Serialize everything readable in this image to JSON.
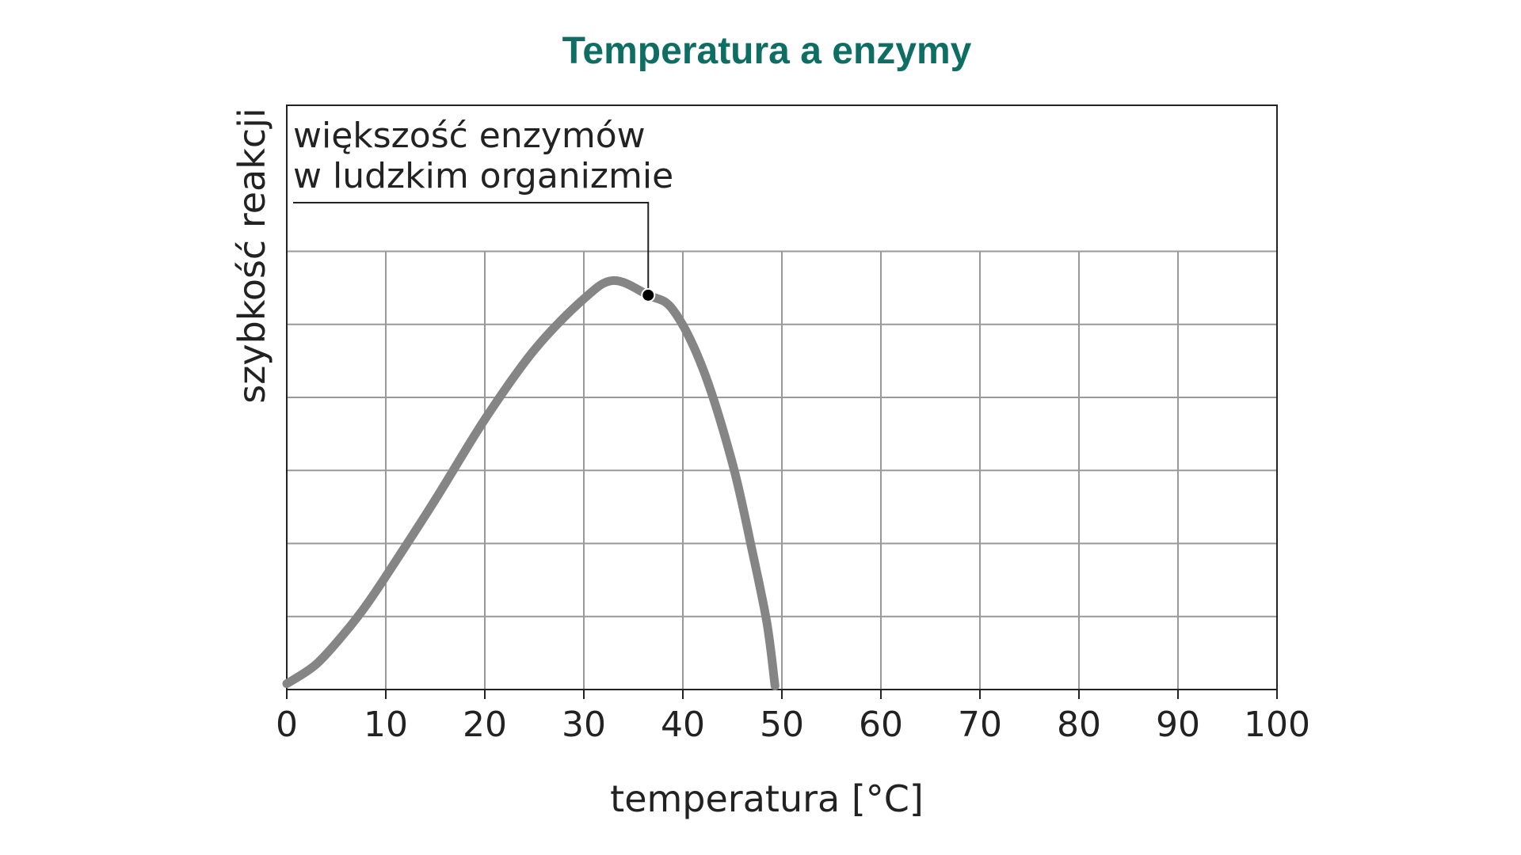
{
  "colors": {
    "title": "#0f6e64",
    "curve": "#858585",
    "grid": "#999999",
    "frame": "#222222",
    "marker": "#000000"
  },
  "chart_data": {
    "type": "line",
    "title": "Temperatura a enzymy",
    "xlabel": "temperatura [°C]",
    "ylabel": "szybkość reakcji",
    "xlim": [
      0,
      100
    ],
    "ylim": [
      0,
      8
    ],
    "x_ticks": [
      0,
      10,
      20,
      30,
      40,
      50,
      60,
      70,
      80,
      90,
      100
    ],
    "x_tick_labels": [
      "0",
      "10",
      "20",
      "30",
      "40",
      "50",
      "60",
      "70",
      "80",
      "90",
      "100"
    ],
    "y_tick_labels": [],
    "y_gridlines": [
      1,
      2,
      3,
      4,
      5,
      6
    ],
    "grid": true,
    "series": [
      {
        "x": [
          0,
          3,
          6,
          8,
          10,
          15,
          20,
          25,
          30,
          33,
          36.5,
          39,
          42,
          45,
          47,
          48.5,
          49.3
        ],
        "y": [
          0.08,
          0.35,
          0.8,
          1.15,
          1.55,
          2.6,
          3.7,
          4.65,
          5.35,
          5.6,
          5.4,
          5.2,
          4.4,
          3.1,
          1.9,
          0.9,
          0.05
        ]
      }
    ],
    "annotations": [
      {
        "lines": [
          "większość enzymów",
          "w ludzkim organizmie"
        ],
        "x": 36.5,
        "y": 5.4
      }
    ]
  }
}
